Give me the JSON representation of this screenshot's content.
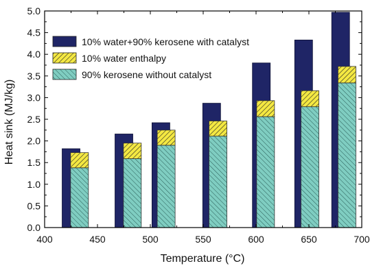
{
  "chart_data": {
    "type": "bar",
    "title": "",
    "xlabel": "Temperature (°C)",
    "ylabel": "Heat sink (MJ/kg)",
    "xlim": [
      400,
      700
    ],
    "ylim": [
      0,
      5.0
    ],
    "x_ticks": [
      400,
      450,
      500,
      550,
      600,
      650,
      700
    ],
    "x_tick_labels": [
      "400",
      "450",
      "500",
      "550",
      "600",
      "650",
      "700"
    ],
    "y_ticks": [
      0,
      0.5,
      1.0,
      1.5,
      2.0,
      2.5,
      3.0,
      3.5,
      4.0,
      4.5,
      5.0
    ],
    "y_tick_labels": [
      "0.0",
      "0.5",
      "1.0",
      "1.5",
      "2.0",
      "2.5",
      "3.0",
      "3.5",
      "4.0",
      "4.5",
      "5.0"
    ],
    "grid": false,
    "legend_position": "top-left",
    "series": [
      {
        "name": "10% water+90% kerosene with catalyst",
        "kind": "total",
        "color": "#1f2566",
        "x": [
          425,
          475,
          510,
          558,
          605,
          645,
          680
        ],
        "values": [
          1.82,
          2.16,
          2.42,
          2.87,
          3.8,
          4.33,
          4.97
        ]
      },
      {
        "name": "10% water enthalpy",
        "kind": "stacked-top",
        "color": "#f4e842",
        "x": [
          433,
          483,
          515,
          564,
          609,
          651,
          686
        ],
        "values": [
          0.35,
          0.36,
          0.35,
          0.35,
          0.37,
          0.37,
          0.38
        ]
      },
      {
        "name": "90% kerosene without catalyst",
        "kind": "stacked-base",
        "color": "#7fcdc1",
        "x": [
          433,
          483,
          515,
          564,
          609,
          651,
          686
        ],
        "values": [
          1.38,
          1.59,
          1.9,
          2.11,
          2.56,
          2.79,
          3.34
        ]
      }
    ]
  }
}
